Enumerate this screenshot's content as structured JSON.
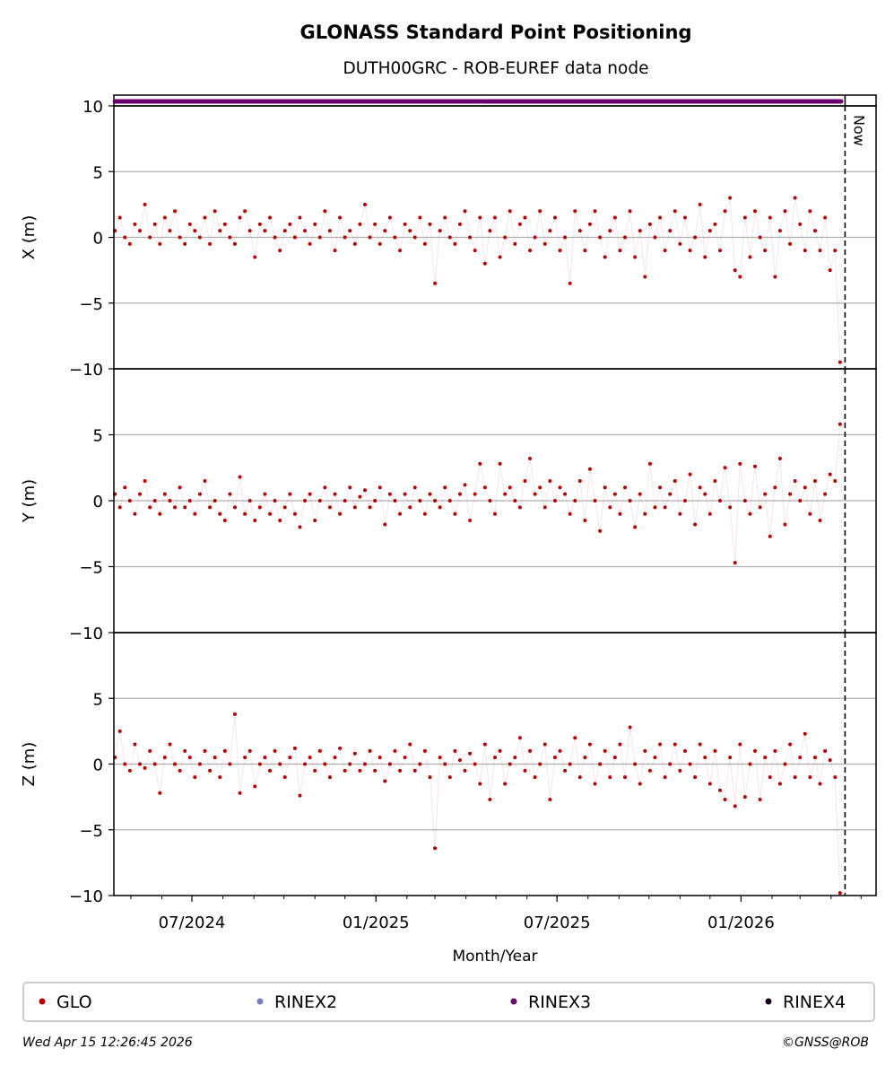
{
  "chart_data": {
    "type": "scatter",
    "title": "GLONASS Standard Point Positioning",
    "subtitle": "DUTH00GRC - ROB-EUREF data node",
    "xlabel": "Month/Year",
    "x_range": [
      "2024-04-14",
      "2026-05-16"
    ],
    "x_ticks": [
      {
        "date": "2024-07-01",
        "label": "07/2024"
      },
      {
        "date": "2025-01-01",
        "label": "01/2025"
      },
      {
        "date": "2025-07-01",
        "label": "07/2025"
      },
      {
        "date": "2026-01-01",
        "label": "01/2026"
      }
    ],
    "x_minor_ticks": "monthly",
    "now_date": "2026-04-15",
    "now_label": "Now",
    "ylim": [
      -10,
      10
    ],
    "y_ticks": [
      10,
      5,
      0,
      -5,
      -10
    ],
    "y_tick_labels": [
      "10",
      "5",
      "0",
      "−5",
      "−10"
    ],
    "grid": true,
    "start_date": "2024-04-15",
    "step_days": 5,
    "panels": [
      {
        "name": "X",
        "ylabel": "X (m)",
        "values": [
          0.5,
          1.5,
          0,
          -0.5,
          1,
          0.5,
          2.5,
          0,
          1,
          -0.5,
          1.5,
          0.5,
          2,
          0,
          -0.5,
          1,
          0.5,
          0,
          1.5,
          -0.5,
          2,
          0.5,
          1,
          0,
          -0.5,
          1.5,
          2,
          0.5,
          -1.5,
          1,
          0.5,
          1.5,
          0,
          -1,
          0.5,
          1,
          0,
          1.5,
          0.5,
          -0.5,
          1,
          0,
          2,
          0.5,
          -1,
          1.5,
          0,
          0.5,
          -0.5,
          1,
          2.5,
          0,
          1,
          -0.5,
          0.5,
          1.5,
          0,
          -1,
          1,
          0.5,
          0,
          1.5,
          -0.5,
          1,
          -3.5,
          0.5,
          1.5,
          0,
          -0.5,
          1,
          2,
          0,
          -1,
          1.5,
          -2,
          0.5,
          1.5,
          -1.5,
          0,
          2,
          -0.5,
          1,
          1.5,
          -1,
          0,
          2,
          -0.5,
          0.5,
          1.5,
          -1,
          0,
          -3.5,
          2,
          0.5,
          -1,
          1,
          2,
          0,
          -1.5,
          0.5,
          1.5,
          -1,
          0,
          2,
          -1.5,
          0.5,
          -3,
          1,
          0,
          1.5,
          -1,
          0.5,
          2,
          -0.5,
          1.5,
          -1,
          0,
          2.5,
          -1.5,
          0.5,
          1,
          -1,
          2,
          3,
          -2.5,
          -3,
          1.5,
          -1.5,
          2,
          0,
          -1,
          1.5,
          -3,
          0.5,
          2,
          -0.5,
          3,
          1,
          -1,
          2,
          0.5,
          -1,
          1.5,
          -2.5,
          -1,
          -9.5
        ]
      },
      {
        "name": "Y",
        "ylabel": "Y (m)",
        "values": [
          0.5,
          -0.5,
          1,
          0,
          -1,
          0.5,
          1.5,
          -0.5,
          0,
          -1,
          0.5,
          0,
          -0.5,
          1,
          -0.5,
          0,
          -1,
          0.5,
          1.5,
          -0.5,
          0,
          -1,
          -1.5,
          0.5,
          -0.5,
          1.8,
          -1,
          0,
          -1.5,
          -0.5,
          0.5,
          -1,
          0,
          -1.5,
          -0.5,
          0.5,
          -1,
          -2,
          0,
          0.5,
          -1.5,
          0,
          1,
          -0.5,
          0.5,
          -1,
          0,
          1,
          -0.5,
          0.3,
          0.8,
          -0.5,
          0,
          1,
          -1.8,
          0.5,
          0,
          -1,
          0.5,
          -0.5,
          1,
          0,
          -1,
          0.5,
          0,
          -0.5,
          1,
          0,
          -1,
          0.5,
          1.2,
          -1.5,
          0.5,
          2.8,
          1,
          0,
          -1,
          2.8,
          0.5,
          1,
          0,
          -0.5,
          1.5,
          3.2,
          0.5,
          1,
          -0.5,
          1.5,
          0,
          1,
          0.5,
          -1,
          0,
          1.5,
          -1.5,
          2.4,
          0,
          -2.3,
          1,
          -0.5,
          0.5,
          -1,
          1,
          0,
          -2,
          0.5,
          -1,
          2.8,
          -0.5,
          1,
          -0.5,
          0.5,
          1.5,
          -1,
          0,
          2,
          -1.8,
          1,
          0.5,
          -1,
          1.5,
          0,
          2.5,
          -0.5,
          -4.7,
          2.8,
          0,
          -1,
          2.6,
          -0.5,
          0.5,
          -2.7,
          1,
          3.2,
          -1.8,
          0.5,
          1.5,
          0,
          1,
          -1,
          1.5,
          -1.5,
          0.5,
          2,
          1.5,
          5.8
        ]
      },
      {
        "name": "Z",
        "ylabel": "Z (m)",
        "values": [
          0.5,
          2.5,
          0,
          -0.5,
          1.5,
          0,
          -0.3,
          1,
          0,
          -2.2,
          0.5,
          1.5,
          0,
          -0.5,
          1,
          0.5,
          -1,
          0,
          1,
          -0.5,
          0.5,
          -1,
          1,
          0,
          3.8,
          -2.2,
          0.5,
          1,
          -1.7,
          0,
          0.5,
          -0.5,
          1,
          0,
          -1,
          0.5,
          1.2,
          -2.4,
          0,
          0.5,
          -0.5,
          1,
          0,
          -1,
          0.5,
          1.2,
          -0.5,
          0,
          0.8,
          -0.5,
          0,
          1,
          -0.5,
          0.5,
          -1.3,
          0,
          1,
          -0.5,
          0.5,
          1.5,
          -0.5,
          0,
          1,
          -1,
          -6.4,
          0.5,
          0,
          -1,
          1,
          0.3,
          -0.5,
          0.8,
          0,
          -1.5,
          1.5,
          -2.7,
          0.5,
          1,
          -1.5,
          0,
          0.5,
          2,
          -0.5,
          1,
          -1,
          0,
          1.5,
          -2.7,
          0.5,
          1,
          -0.5,
          0,
          2,
          -1,
          0.5,
          1.5,
          -1.5,
          0,
          1,
          -1,
          0.5,
          1.5,
          -1,
          2.8,
          0,
          -1.5,
          1,
          -0.5,
          0.5,
          1.5,
          -1,
          0,
          1.5,
          -0.5,
          1,
          0,
          -1,
          1.5,
          0.5,
          -1.5,
          1,
          -2,
          -2.7,
          0.5,
          -3.2,
          1.5,
          -2.5,
          0,
          1,
          -2.7,
          0.5,
          -1,
          1,
          -1.5,
          0,
          1.5,
          -1,
          0.5,
          2.3,
          -1,
          0.5,
          -1.5,
          1,
          0.3,
          -1,
          -9.8
        ]
      }
    ],
    "rinex3_availability": [
      [
        "2024-04-15",
        "2025-04-15"
      ],
      [
        "2025-04-17",
        "2026-04-11"
      ]
    ],
    "legend_position": "bottom",
    "legend": [
      {
        "label": "GLO",
        "color": "#b30000"
      },
      {
        "label": "RINEX2",
        "color": "#7b7bbf"
      },
      {
        "label": "RINEX3",
        "color": "#6a006a"
      },
      {
        "label": "RINEX4",
        "color": "#1a0020"
      }
    ]
  },
  "footer": {
    "timestamp": "Wed Apr 15 12:26:45 2026",
    "credit": "©GNSS@ROB"
  }
}
